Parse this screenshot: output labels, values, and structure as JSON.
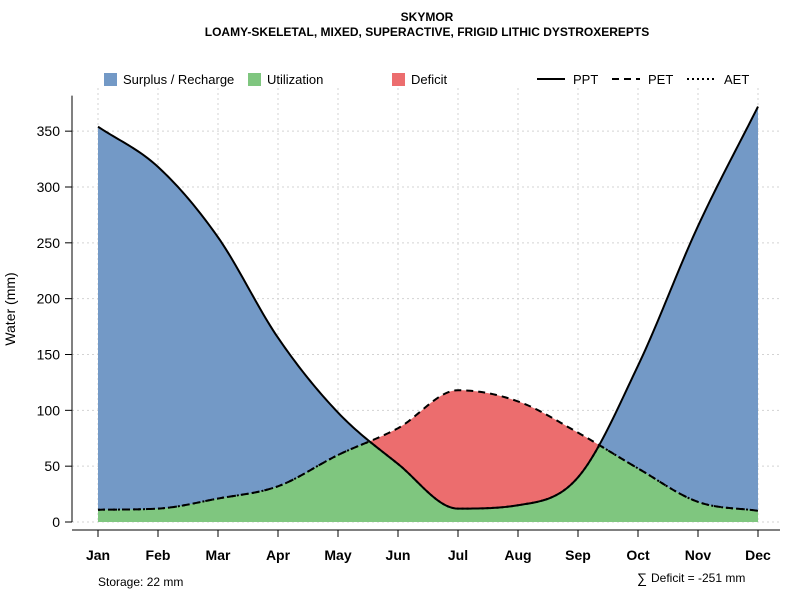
{
  "chart_data": {
    "type": "area",
    "title": "SKYMOR",
    "subtitle": "LOAMY-SKELETAL, MIXED, SUPERACTIVE, FRIGID LITHIC DYSTROXEREPTS",
    "ylabel": "Water (mm)",
    "xlabel": "",
    "ylim": [
      0,
      380
    ],
    "y_ticks": [
      0,
      50,
      100,
      150,
      200,
      250,
      300,
      350
    ],
    "y_tick_labels": [
      "0",
      "50",
      "100",
      "150",
      "200",
      "250",
      "300",
      "350"
    ],
    "categories": [
      "Jan",
      "Feb",
      "Mar",
      "Apr",
      "May",
      "Jun",
      "Jul",
      "Aug",
      "Sep",
      "Oct",
      "Nov",
      "Dec"
    ],
    "grid": true,
    "legend_placement": "top",
    "series": [
      {
        "name": "PPT",
        "style": "solid",
        "values": [
          354,
          318,
          255,
          165,
          98,
          52,
          12,
          15,
          40,
          140,
          265,
          372
        ]
      },
      {
        "name": "PET",
        "style": "dashed",
        "values": [
          11,
          12,
          21,
          32,
          60,
          84,
          118,
          108,
          80,
          48,
          18,
          10
        ]
      },
      {
        "name": "AET",
        "style": "dotted",
        "values": [
          11,
          12,
          21,
          32,
          60,
          68,
          16,
          15,
          40,
          48,
          18,
          10
        ]
      }
    ],
    "areas": [
      {
        "name": "Surplus / Recharge",
        "color": "#7399C6"
      },
      {
        "name": "Utilization",
        "color": "#7FC67F"
      },
      {
        "name": "Deficit",
        "color": "#EC6D6E"
      }
    ],
    "annotations": {
      "storage": "Storage: 22 mm",
      "deficit_symbol": "∑",
      "deficit": "Deficit = -251 mm"
    }
  }
}
